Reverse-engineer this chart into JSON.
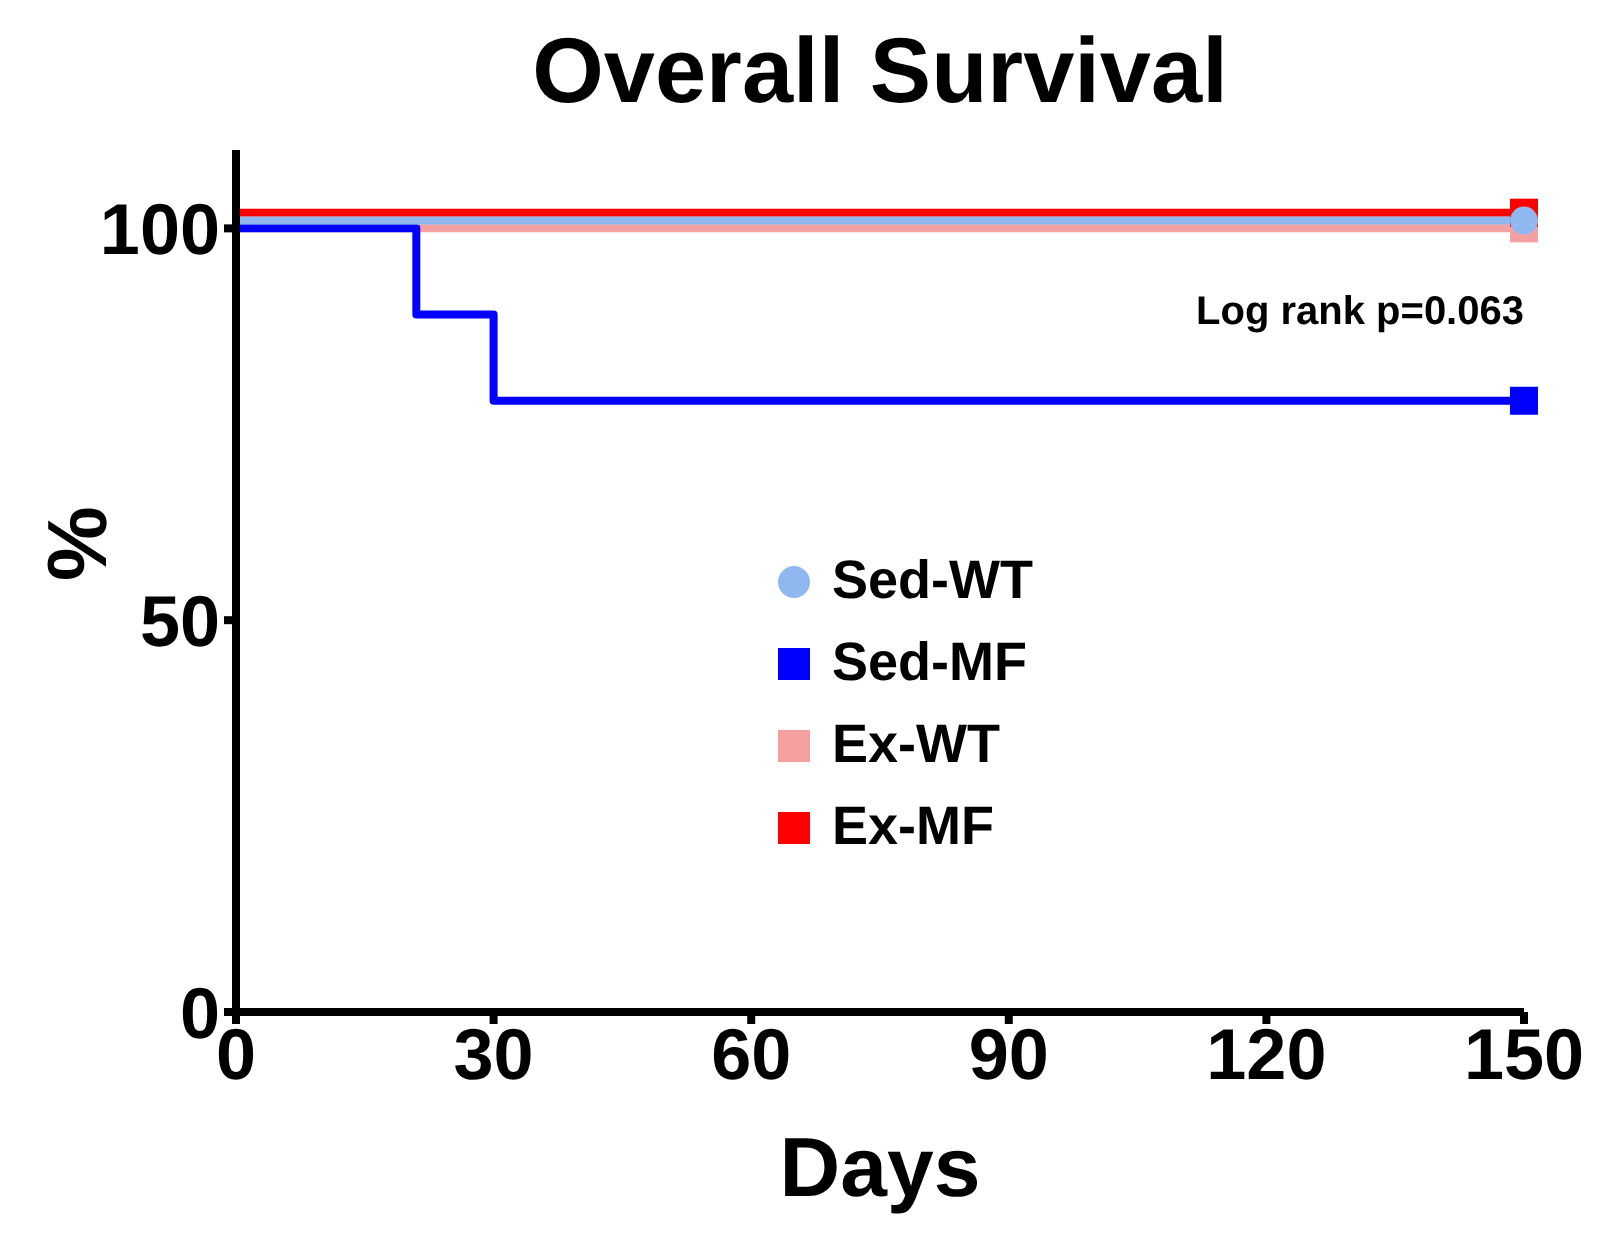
{
  "chart_data": {
    "type": "step",
    "title": "Overall Survival",
    "xlabel": "Days",
    "ylabel": "%",
    "xlim": [
      0,
      150
    ],
    "xticks": [
      0,
      30,
      60,
      90,
      120,
      150
    ],
    "ylim": [
      0,
      110
    ],
    "yticks": [
      0,
      50,
      100
    ],
    "grid": false,
    "legend": "center",
    "line_style": "solid",
    "annotations": [
      "Log rank p=0.063"
    ],
    "series": [
      {
        "name": "Sed-WT",
        "color": "#8fb8f0",
        "marker": "circle",
        "x": [
          0,
          150
        ],
        "values": [
          101,
          101
        ]
      },
      {
        "name": "Sed-MF",
        "color": "#0000ff",
        "marker": "none",
        "x": [
          0,
          21,
          30,
          150
        ],
        "values": [
          100,
          89,
          78,
          78
        ]
      },
      {
        "name": "Ex-WT",
        "color": "#f4a0a0",
        "marker": "square",
        "x": [
          0,
          150
        ],
        "values": [
          100,
          100
        ]
      },
      {
        "name": "Ex-MF",
        "color": "#ff0000",
        "marker": "square",
        "x": [
          0,
          150
        ],
        "values": [
          102,
          102
        ]
      },
      {
        "type": "scatter",
        "color": "#0000ff",
        "marker": "square",
        "x": [
          150
        ],
        "values": [
          78
        ]
      }
    ]
  }
}
